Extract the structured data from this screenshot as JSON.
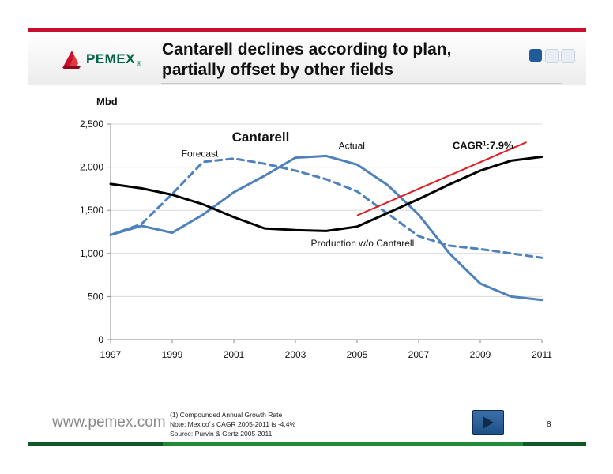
{
  "header": {
    "title_line1": "Cantarell declines according to plan,",
    "title_line2": "partially offset by other fields",
    "logo_text": "PEMEX",
    "logo_reg": "®"
  },
  "colors": {
    "brand_red": "#c8102e",
    "brand_green": "#006341",
    "actual_line": "#4f81bd",
    "forecast_line": "#4f81bd",
    "other_fields_line": "#000000",
    "cagr_line": "#e31b23",
    "nav_squares": [
      "#1f5c99",
      "#e8eef5",
      "#e8eef5"
    ]
  },
  "chart_data": {
    "type": "line",
    "title": "Cantarell",
    "ylabel": "Mbd",
    "xlabel": "",
    "ylim": [
      0,
      2500
    ],
    "xlim": [
      1997,
      2011
    ],
    "y_ticks": [
      0,
      500,
      1000,
      1500,
      2000,
      2500
    ],
    "y_tick_labels": [
      "0",
      "500",
      "1,000",
      "1,500",
      "2,000",
      "2,500"
    ],
    "x_ticks": [
      1997,
      1999,
      2001,
      2003,
      2005,
      2007,
      2009,
      2011
    ],
    "x_tick_labels": [
      "1997",
      "1999",
      "2001",
      "2003",
      "2005",
      "2007",
      "2009",
      "2011"
    ],
    "grid": "horizontal",
    "series": [
      {
        "name": "Actual",
        "style": "solid",
        "x": [
          1997,
          1998,
          1999,
          2000,
          2001,
          2002,
          2003,
          2004,
          2005,
          2006,
          2007,
          2008,
          2009,
          2010,
          2011
        ],
        "values": [
          1215,
          1320,
          1240,
          1450,
          1710,
          1900,
          2110,
          2130,
          2030,
          1790,
          1450,
          1000,
          650,
          500,
          460
        ]
      },
      {
        "name": "Forecast",
        "style": "dashed",
        "x": [
          1997,
          1998,
          1999,
          2000,
          2001,
          2002,
          2003,
          2004,
          2005,
          2006,
          2007,
          2008,
          2009,
          2010,
          2011
        ],
        "values": [
          1215,
          1340,
          1690,
          2060,
          2100,
          2040,
          1960,
          1860,
          1720,
          1460,
          1200,
          1090,
          1050,
          1000,
          950
        ]
      },
      {
        "name": "Production w/o Cantarell",
        "style": "solid",
        "x": [
          1997,
          1998,
          1999,
          2000,
          2001,
          2002,
          2003,
          2004,
          2005,
          2006,
          2007,
          2008,
          2009,
          2010,
          2011
        ],
        "values": [
          1805,
          1755,
          1680,
          1570,
          1420,
          1290,
          1270,
          1260,
          1310,
          1470,
          1630,
          1800,
          1960,
          2075,
          2120
        ]
      }
    ],
    "annotations": [
      {
        "text": "Forecast",
        "x": 1999.3,
        "y": 2120
      },
      {
        "text": "Actual",
        "x": 2004.4,
        "y": 2210
      },
      {
        "text": "Production w/o Cantarell",
        "x": 2003.5,
        "y": 1080
      },
      {
        "text": "CAGR",
        "superscript": "1",
        "suffix": ":7.9%",
        "x": 2008.1,
        "y": 2210
      }
    ],
    "cagr_trend": {
      "x": [
        2005,
        2010.5
      ],
      "values": [
        1440,
        2290
      ]
    }
  },
  "footer": {
    "site": "www.pemex.com",
    "footnotes": [
      "(1)  Compounded Annual Growth Rate",
      "Note: Mexico´s CAGR 2005-2011 is -4.4%",
      "Source: Purvin & Gertz 2005-2011"
    ],
    "page_number": "8"
  }
}
